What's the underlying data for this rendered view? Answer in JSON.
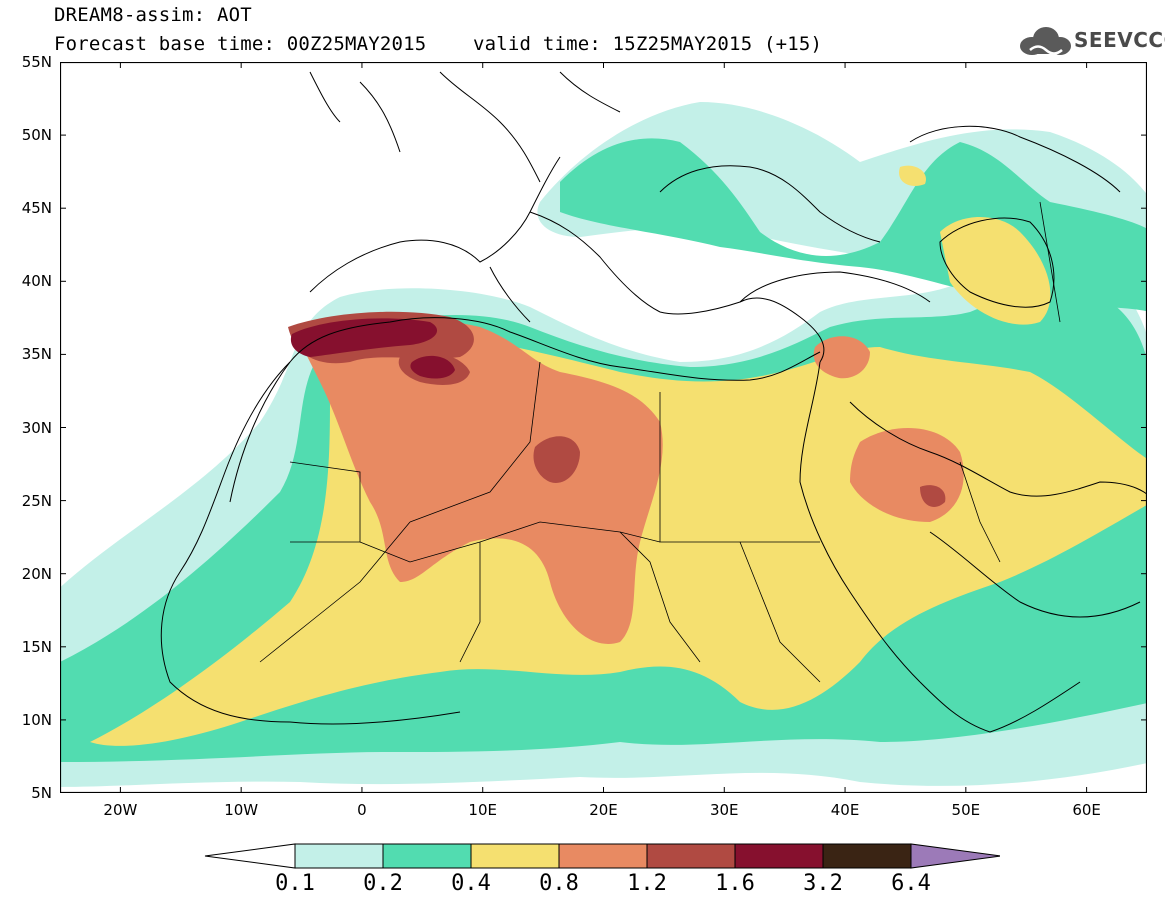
{
  "title": {
    "line1": "DREAM8-assim: AOT",
    "line2": "Forecast base time: 00Z25MAY2015    valid time: 15Z25MAY2015 (+15)"
  },
  "logo": {
    "text": "SEEVCCC",
    "icon": "cloud-icon"
  },
  "axes": {
    "lat_labels": [
      "55N",
      "50N",
      "45N",
      "40N",
      "35N",
      "30N",
      "25N",
      "20N",
      "15N",
      "10N",
      "5N"
    ],
    "lon_labels": [
      "20W",
      "10W",
      "0",
      "10E",
      "20E",
      "30E",
      "40E",
      "50E",
      "60E"
    ],
    "lat_range": [
      5,
      55
    ],
    "lon_range": [
      -25,
      65
    ]
  },
  "legend": {
    "levels": [
      "0.1",
      "0.2",
      "0.4",
      "0.8",
      "1.2",
      "1.6",
      "3.2",
      "6.4"
    ],
    "colors": [
      "#ffffff",
      "#c3f0e8",
      "#52dcb0",
      "#f5e070",
      "#e88a62",
      "#b04a42",
      "#86102e",
      "#3a2414",
      "#9c7ab8"
    ]
  },
  "field_colors": {
    "c1": "#c3f0e8",
    "c2": "#52dcb0",
    "c3": "#f5e070",
    "c4": "#e88a62",
    "c5": "#b04a42",
    "c6": "#86102e"
  }
}
